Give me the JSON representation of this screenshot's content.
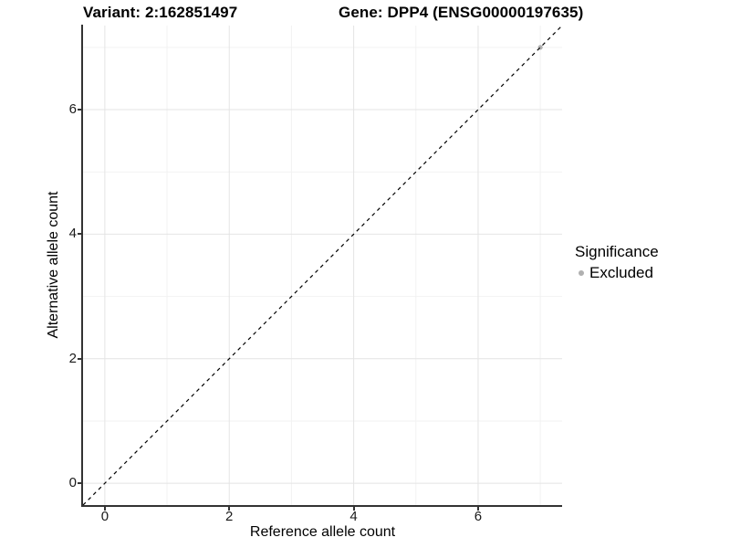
{
  "titles": {
    "variant": "Variant: 2:162851497",
    "gene": "Gene: DPP4 (ENSG00000197635)"
  },
  "chart_data": {
    "type": "scatter",
    "xlabel": "Reference allele count",
    "ylabel": "Alternative allele count",
    "xlim": [
      -0.35,
      7.35
    ],
    "ylim": [
      -0.35,
      7.35
    ],
    "x_ticks": [
      0,
      2,
      4,
      6
    ],
    "y_ticks": [
      0,
      2,
      4,
      6
    ],
    "x_minor_ticks": [
      1,
      3,
      5,
      7
    ],
    "y_minor_ticks": [
      1,
      3,
      5,
      7
    ],
    "grid": "major+minor",
    "points": [
      {
        "x": 7,
        "y": 7,
        "series": "Excluded"
      }
    ],
    "reference_line": {
      "type": "identity",
      "from": [
        -0.35,
        -0.35
      ],
      "to": [
        7.35,
        7.35
      ],
      "style": "dashed",
      "color": "#000000"
    },
    "legend": {
      "title": "Significance",
      "position": "right",
      "items": [
        {
          "label": "Excluded",
          "color": "#b0b0b0"
        }
      ]
    }
  },
  "colors": {
    "background": "#ffffff",
    "major_grid": "#e4e4e4",
    "minor_grid": "#f2f2f2",
    "axis_line": "#333333",
    "point": "#b0b0b0",
    "title_text": "#000000"
  }
}
